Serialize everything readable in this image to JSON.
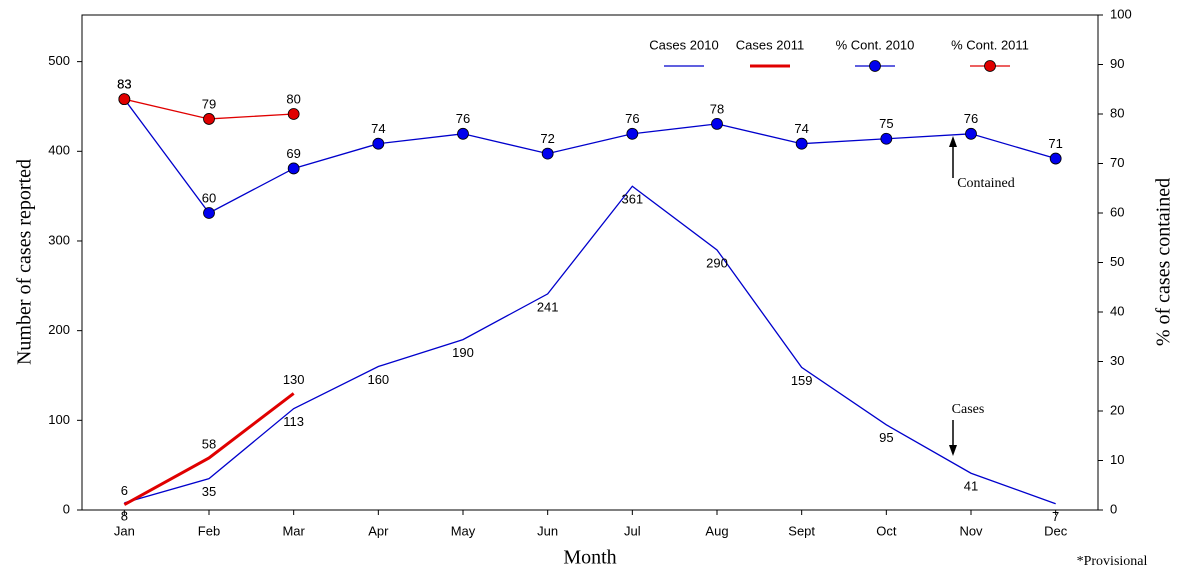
{
  "chart_data": {
    "type": "line",
    "x_label": "Month",
    "y_label": "Number of cases reported",
    "y2_label": "% of cases contained",
    "categories": [
      "Jan",
      "Feb",
      "Mar",
      "Apr",
      "May",
      "Jun",
      "Jul",
      "Aug",
      "Sept",
      "Oct",
      "Nov",
      "Dec"
    ],
    "series": [
      {
        "name": "Cases 2010",
        "color": "#0000cc",
        "marker": false,
        "values": [
          8,
          35,
          113,
          160,
          190,
          241,
          361,
          290,
          159,
          95,
          41,
          7
        ]
      },
      {
        "name": "Cases 2011",
        "color": "#e00000",
        "marker": false,
        "values": [
          6,
          58,
          130,
          null,
          null,
          null,
          null,
          null,
          null,
          null,
          null,
          null
        ]
      },
      {
        "name": "% Cont. 2010",
        "color": "#0000cc",
        "marker": true,
        "axis": "y2",
        "values": [
          83,
          60,
          69,
          74,
          76,
          72,
          76,
          78,
          74,
          75,
          76,
          71
        ]
      },
      {
        "name": "% Cont. 2011",
        "color": "#e00000",
        "marker": true,
        "axis": "y2",
        "values": [
          83,
          79,
          80,
          null,
          null,
          null,
          null,
          null,
          null,
          null,
          null,
          null
        ]
      }
    ],
    "ylim": [
      0,
      552
    ],
    "yticks": [
      0,
      100,
      200,
      300,
      400,
      500
    ],
    "y2lim": [
      0,
      100
    ],
    "y2ticks": [
      0,
      10,
      20,
      30,
      40,
      50,
      60,
      70,
      80,
      90,
      100
    ],
    "grid": false,
    "annotations": [
      "Contained",
      "Cases",
      "*Provisional"
    ]
  }
}
